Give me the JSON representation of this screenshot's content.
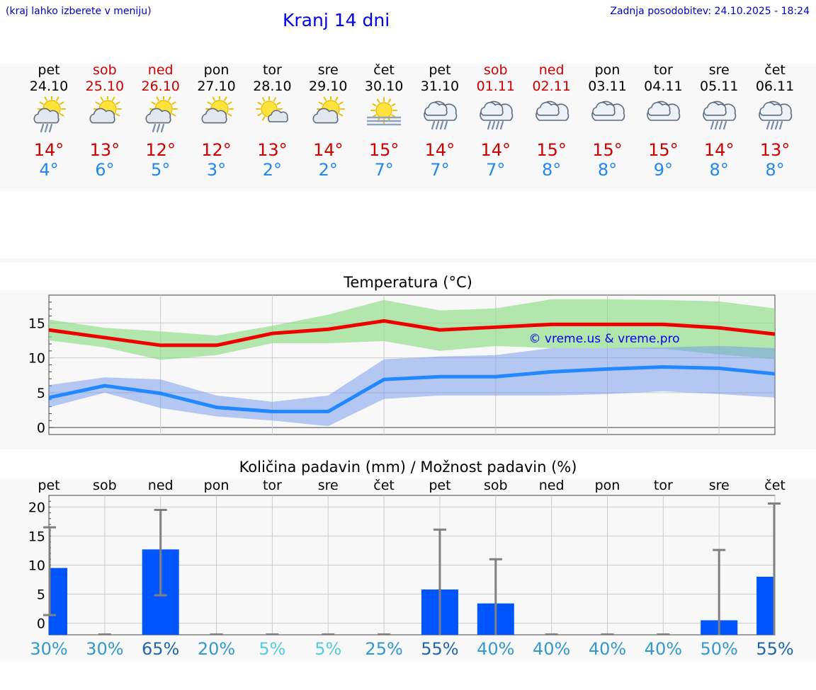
{
  "header": {
    "hint": "(kraj lahko izberete v meniju)",
    "title": "Kranj 14 dni",
    "updated": "Zadnja posodobitev: 24.10.2025 - 18:24"
  },
  "colors": {
    "max": "#cc0000",
    "min": "#2288ee",
    "weekend": "#cc0000",
    "bar": "#0055ff"
  },
  "days": [
    {
      "name": "pet",
      "date": "24.10",
      "weekend": false,
      "icon": "sun-cloud-rain-icon",
      "max": "14°",
      "min": "4°"
    },
    {
      "name": "sob",
      "date": "25.10",
      "weekend": true,
      "icon": "sun-cloud-icon",
      "max": "13°",
      "min": "6°"
    },
    {
      "name": "ned",
      "date": "26.10",
      "weekend": true,
      "icon": "sun-cloud-rain-icon",
      "max": "12°",
      "min": "5°"
    },
    {
      "name": "pon",
      "date": "27.10",
      "weekend": false,
      "icon": "sun-cloud-icon",
      "max": "12°",
      "min": "3°"
    },
    {
      "name": "tor",
      "date": "28.10",
      "weekend": false,
      "icon": "sun-small-cloud-icon",
      "max": "13°",
      "min": "2°"
    },
    {
      "name": "sre",
      "date": "29.10",
      "weekend": false,
      "icon": "sun-cloud-icon",
      "max": "14°",
      "min": "2°"
    },
    {
      "name": "čet",
      "date": "30.10",
      "weekend": false,
      "icon": "sun-fog-icon",
      "max": "15°",
      "min": "7°"
    },
    {
      "name": "pet",
      "date": "31.10",
      "weekend": false,
      "icon": "cloud-rain-icon",
      "max": "14°",
      "min": "7°"
    },
    {
      "name": "sob",
      "date": "01.11",
      "weekend": true,
      "icon": "cloud-rain-icon",
      "max": "14°",
      "min": "7°"
    },
    {
      "name": "ned",
      "date": "02.11",
      "weekend": true,
      "icon": "cloud-icon",
      "max": "15°",
      "min": "8°"
    },
    {
      "name": "pon",
      "date": "03.11",
      "weekend": false,
      "icon": "cloud-icon",
      "max": "15°",
      "min": "8°"
    },
    {
      "name": "tor",
      "date": "04.11",
      "weekend": false,
      "icon": "cloud-icon",
      "max": "15°",
      "min": "9°"
    },
    {
      "name": "sre",
      "date": "05.11",
      "weekend": false,
      "icon": "cloud-rain-icon",
      "max": "14°",
      "min": "8°"
    },
    {
      "name": "čet",
      "date": "06.11",
      "weekend": false,
      "icon": "cloud-rain-icon",
      "max": "13°",
      "min": "8°"
    }
  ],
  "chart_data": [
    {
      "type": "line",
      "title": "Temperatura (°C)",
      "watermark": "© vreme.us & vreme.pro",
      "ylim": [
        -1,
        19
      ],
      "yticks": [
        0,
        5,
        10,
        15
      ],
      "grid": true,
      "series": [
        {
          "values": [
            14.0,
            12.9,
            11.8,
            11.8,
            13.5,
            14.1,
            15.3,
            14.0,
            14.4,
            14.8,
            14.8,
            14.8,
            14.3,
            13.4
          ],
          "upper": [
            15.5,
            14.3,
            13.8,
            13.2,
            14.6,
            16.2,
            18.3,
            16.8,
            17.1,
            18.4,
            18.4,
            18.3,
            18.1,
            17.1
          ],
          "lower": [
            12.5,
            11.5,
            9.7,
            10.4,
            12.1,
            12.1,
            12.4,
            11.0,
            11.7,
            11.4,
            11.4,
            11.3,
            10.5,
            9.8
          ]
        },
        {
          "values": [
            4.3,
            6.0,
            4.9,
            2.9,
            2.3,
            2.3,
            6.9,
            7.3,
            7.3,
            8.0,
            8.4,
            8.7,
            8.5,
            7.7
          ],
          "upper": [
            6.1,
            7.2,
            6.9,
            4.6,
            3.7,
            4.6,
            9.8,
            10.2,
            10.4,
            11.4,
            11.4,
            11.5,
            11.7,
            11.4
          ],
          "lower": [
            2.9,
            5.0,
            2.8,
            1.6,
            1.0,
            0.2,
            4.1,
            4.6,
            4.6,
            4.6,
            4.8,
            5.2,
            4.8,
            4.3
          ]
        }
      ]
    },
    {
      "type": "bar",
      "title": "Količina padavin (mm) / Možnost padavin (%)",
      "categories": [
        "pet",
        "sob",
        "ned",
        "pon",
        "tor",
        "sre",
        "čet",
        "pet",
        "sob",
        "ned",
        "pon",
        "tor",
        "sre",
        "čet"
      ],
      "ylim": [
        -2,
        22
      ],
      "yticks": [
        0,
        5,
        10,
        15,
        20
      ],
      "values": [
        9.5,
        0,
        12.7,
        0,
        0,
        0,
        0,
        5.8,
        3.4,
        0,
        0,
        0,
        0.5,
        8.0
      ],
      "err_low": [
        1.4,
        0,
        4.8,
        0,
        0,
        0,
        0,
        0,
        0,
        0,
        0,
        0,
        0,
        0
      ],
      "err_high": [
        16.5,
        0,
        19.5,
        0,
        0,
        0,
        0,
        16.1,
        11.0,
        0,
        0,
        0,
        12.6,
        20.6
      ],
      "probability": [
        "30%",
        "30%",
        "65%",
        "20%",
        "5%",
        "5%",
        "25%",
        "55%",
        "40%",
        "40%",
        "40%",
        "40%",
        "50%",
        "55%"
      ],
      "prob_colors": [
        "#3399cc",
        "#3399cc",
        "#2266aa",
        "#3399cc",
        "#55ccdd",
        "#55ccdd",
        "#3399cc",
        "#2266aa",
        "#3399cc",
        "#3399cc",
        "#3399cc",
        "#3399cc",
        "#3399cc",
        "#2266aa"
      ]
    }
  ]
}
